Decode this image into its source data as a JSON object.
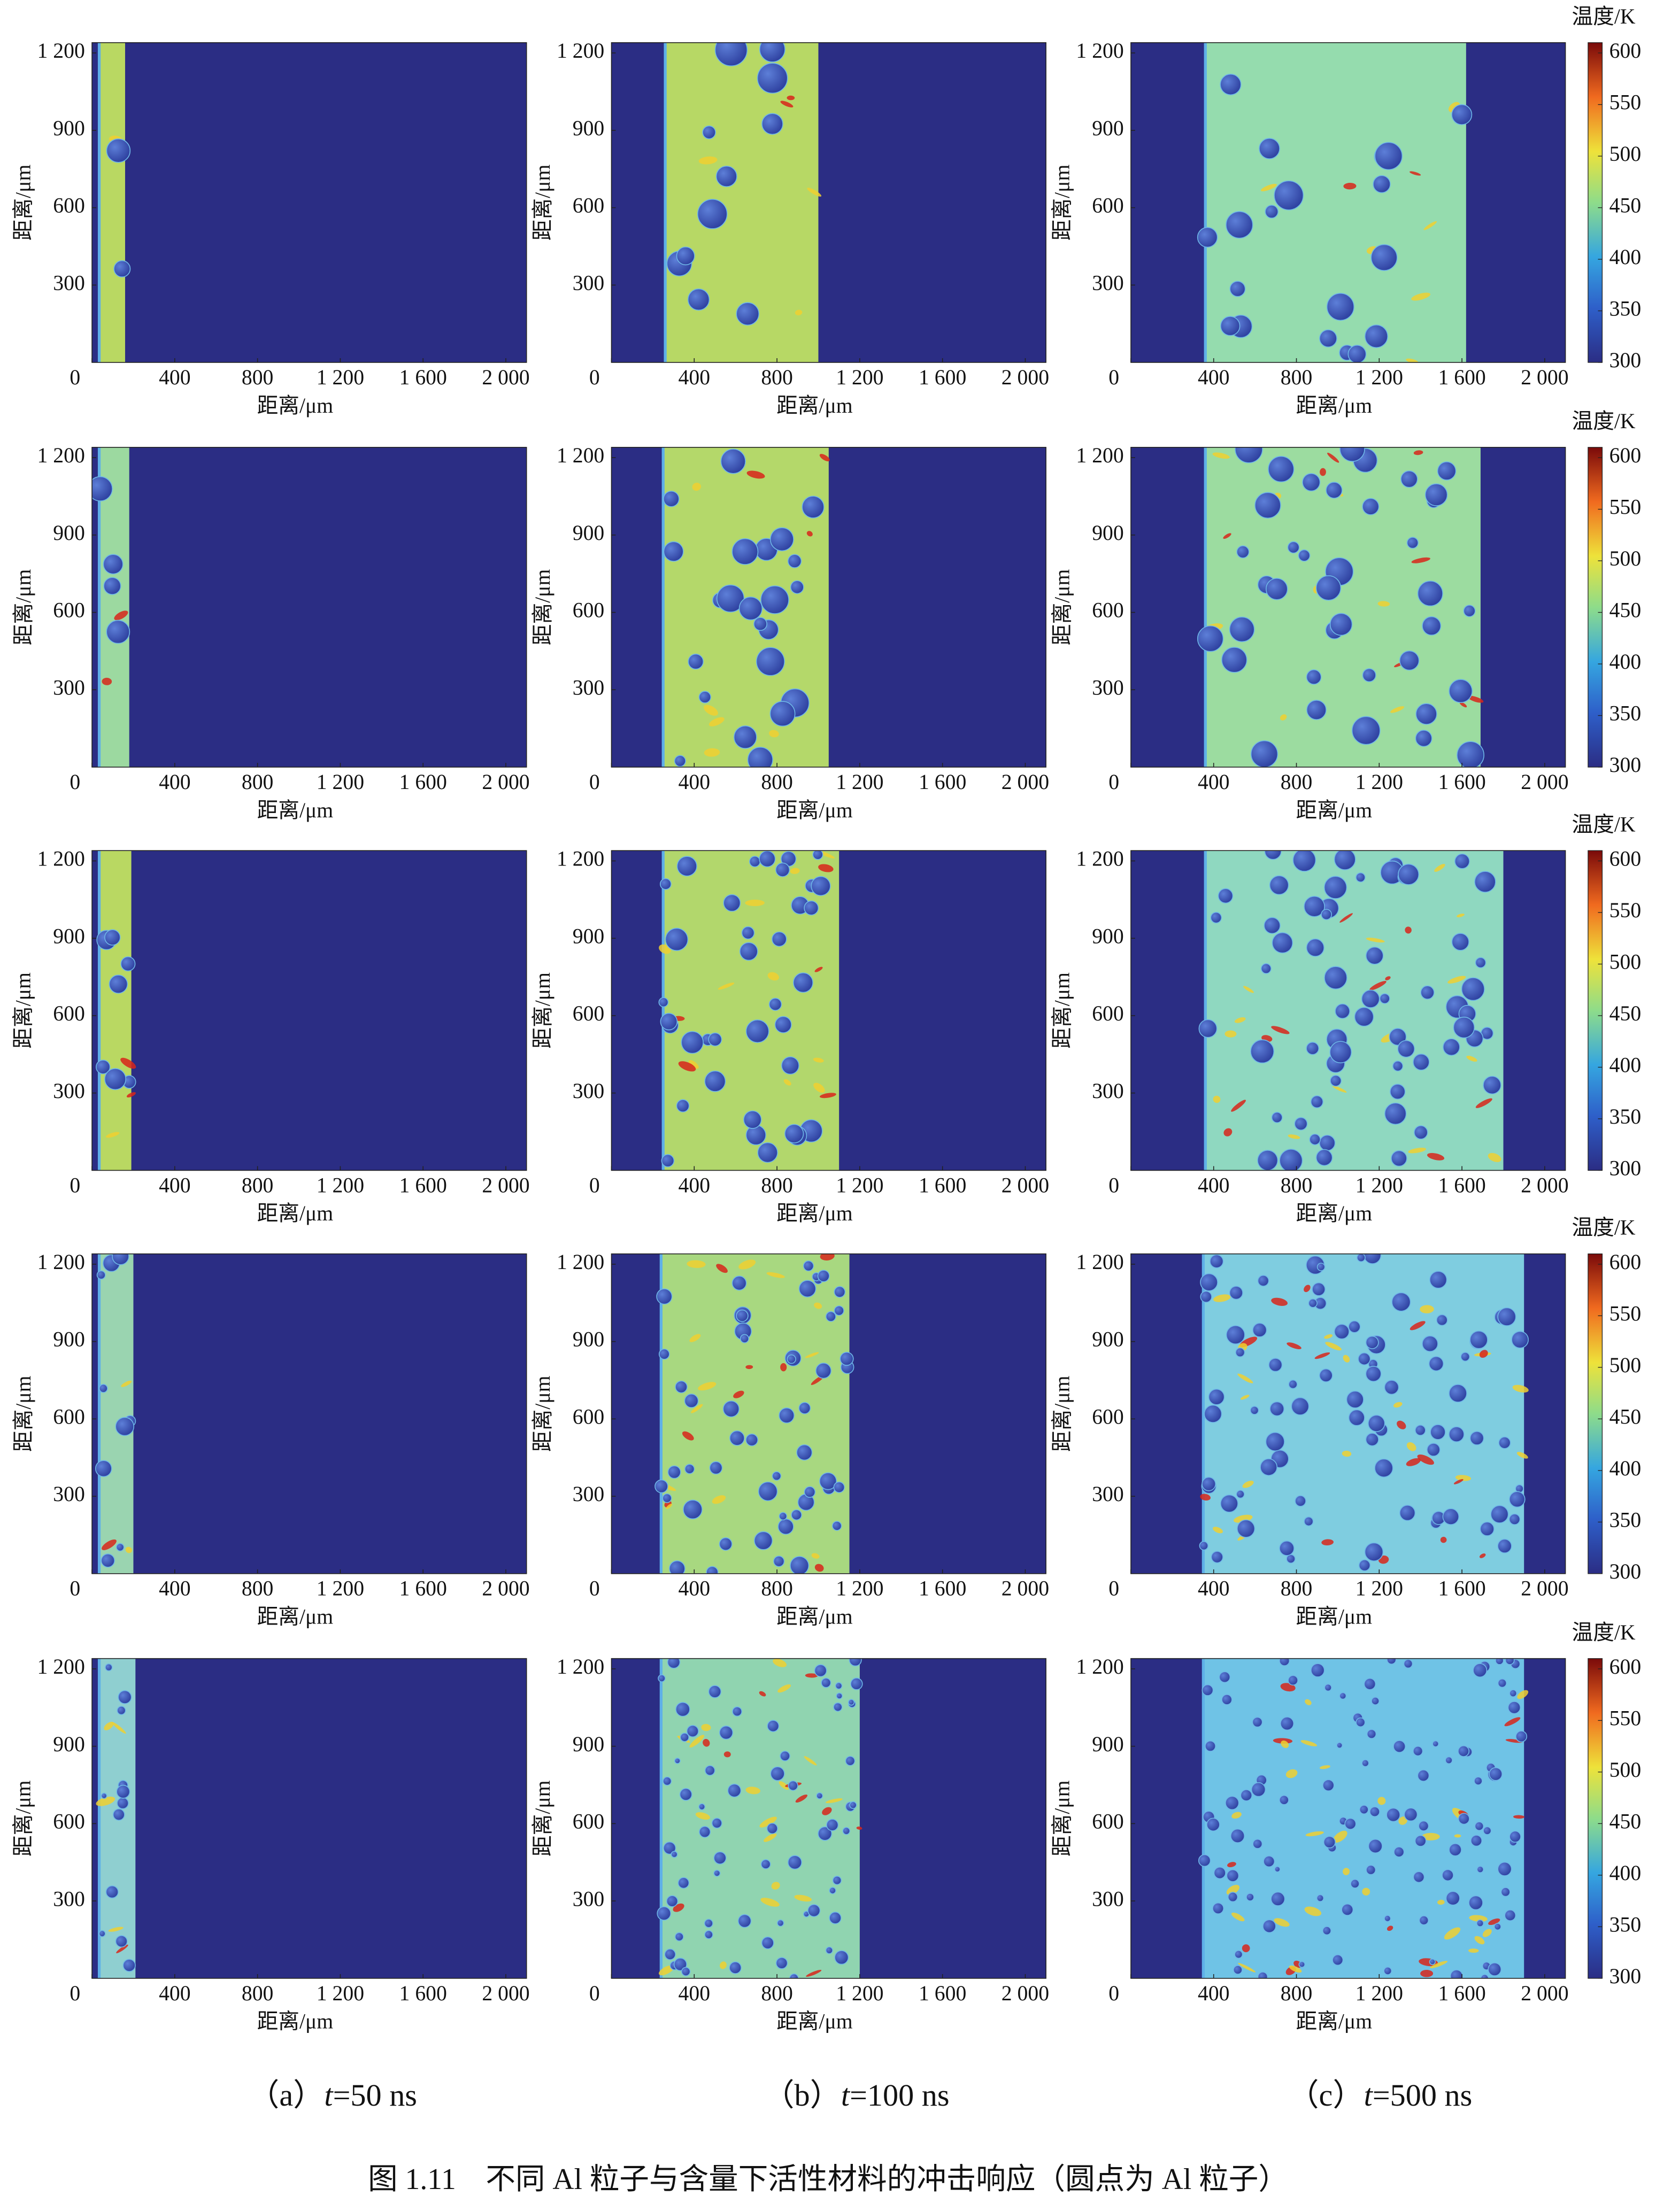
{
  "chart_data": [
    {
      "type": "heatmap",
      "xlabel": "距离/μm",
      "ylabel": "距离/μm",
      "xlim": [
        0,
        2100
      ],
      "xticks": [
        0,
        400,
        800,
        {
          "value": 1200,
          "label": "1 200"
        },
        {
          "value": 1600,
          "label": "1 600"
        },
        {
          "value": 2000,
          "label": "2 000"
        }
      ],
      "ylim": [
        0,
        1240
      ],
      "yticks": [
        300,
        600,
        900,
        {
          "value": 1200,
          "label": "1 200"
        }
      ],
      "shocked": [
        35,
        160
      ],
      "color": "#b9d862"
    },
    {
      "type": "heatmap",
      "xlabel": "距离/μm",
      "ylabel": "距离/μm",
      "xlim": [
        0,
        2100
      ],
      "xticks": [
        0,
        400,
        800,
        {
          "value": 1200,
          "label": "1 200"
        },
        {
          "value": 1600,
          "label": "1 600"
        },
        {
          "value": 2000,
          "label": "2 000"
        }
      ],
      "ylim": [
        0,
        1240
      ],
      "yticks": [
        300,
        600,
        900,
        {
          "value": 1200,
          "label": "1 200"
        }
      ],
      "shocked": [
        260,
        1000
      ],
      "color": "#b7d865"
    },
    {
      "type": "heatmap",
      "xlabel": "距离/μm",
      "ylabel": "距离/μm",
      "xlim": [
        0,
        2100
      ],
      "xticks": [
        0,
        400,
        800,
        {
          "value": 1200,
          "label": "1 200"
        },
        {
          "value": 1600,
          "label": "1 600"
        },
        {
          "value": 2000,
          "label": "2 000"
        }
      ],
      "ylim": [
        0,
        1240
      ],
      "yticks": [
        300,
        600,
        900,
        {
          "value": 1200,
          "label": "1 200"
        }
      ],
      "shocked": [
        360,
        1620
      ],
      "color": "#95dcae",
      "colorbar": {
        "label": "温度/K",
        "lim": [
          300,
          610
        ],
        "ticks": [
          300,
          350,
          400,
          450,
          500,
          550,
          600
        ]
      }
    },
    {
      "type": "heatmap",
      "xlabel": "距离/μm",
      "ylabel": "距离/μm",
      "xlim": [
        0,
        2100
      ],
      "xticks": [
        0,
        400,
        800,
        {
          "value": 1200,
          "label": "1 200"
        },
        {
          "value": 1600,
          "label": "1 600"
        },
        {
          "value": 2000,
          "label": "2 000"
        }
      ],
      "ylim": [
        0,
        1240
      ],
      "yticks": [
        300,
        600,
        900,
        {
          "value": 1200,
          "label": "1 200"
        }
      ],
      "shocked": [
        35,
        180
      ],
      "color": "#9cd9a0"
    },
    {
      "type": "heatmap",
      "xlabel": "距离/μm",
      "ylabel": "距离/μm",
      "xlim": [
        0,
        2100
      ],
      "xticks": [
        0,
        400,
        800,
        {
          "value": 1200,
          "label": "1 200"
        },
        {
          "value": 1600,
          "label": "1 600"
        },
        {
          "value": 2000,
          "label": "2 000"
        }
      ],
      "ylim": [
        0,
        1240
      ],
      "yticks": [
        300,
        600,
        900,
        {
          "value": 1200,
          "label": "1 200"
        }
      ],
      "shocked": [
        250,
        1050
      ],
      "color": "#b4d86a"
    },
    {
      "type": "heatmap",
      "xlabel": "距离/μm",
      "ylabel": "距离/μm",
      "xlim": [
        0,
        2100
      ],
      "xticks": [
        0,
        400,
        800,
        {
          "value": 1200,
          "label": "1 200"
        },
        {
          "value": 1600,
          "label": "1 600"
        },
        {
          "value": 2000,
          "label": "2 000"
        }
      ],
      "ylim": [
        0,
        1240
      ],
      "yticks": [
        300,
        600,
        900,
        {
          "value": 1200,
          "label": "1 200"
        }
      ],
      "shocked": [
        360,
        1690
      ],
      "color": "#9cdca0",
      "colorbar": {
        "label": "温度/K",
        "lim": [
          300,
          610
        ],
        "ticks": [
          300,
          350,
          400,
          450,
          500,
          550,
          600
        ]
      }
    },
    {
      "type": "heatmap",
      "xlabel": "距离/μm",
      "ylabel": "距离/μm",
      "xlim": [
        0,
        2100
      ],
      "xticks": [
        0,
        400,
        800,
        {
          "value": 1200,
          "label": "1 200"
        },
        {
          "value": 1600,
          "label": "1 600"
        },
        {
          "value": 2000,
          "label": "2 000"
        }
      ],
      "ylim": [
        0,
        1240
      ],
      "yticks": [
        300,
        600,
        900,
        {
          "value": 1200,
          "label": "1 200"
        }
      ],
      "shocked": [
        35,
        190
      ],
      "color": "#b9d862"
    },
    {
      "type": "heatmap",
      "xlabel": "距离/μm",
      "ylabel": "距离/μm",
      "xlim": [
        0,
        2100
      ],
      "xticks": [
        0,
        400,
        800,
        {
          "value": 1200,
          "label": "1 200"
        },
        {
          "value": 1600,
          "label": "1 600"
        },
        {
          "value": 2000,
          "label": "2 000"
        }
      ],
      "ylim": [
        0,
        1240
      ],
      "yticks": [
        300,
        600,
        900,
        {
          "value": 1200,
          "label": "1 200"
        }
      ],
      "shocked": [
        250,
        1100
      ],
      "color": "#b2d76c"
    },
    {
      "type": "heatmap",
      "xlabel": "距离/μm",
      "ylabel": "距离/μm",
      "xlim": [
        0,
        2100
      ],
      "xticks": [
        0,
        400,
        800,
        {
          "value": 1200,
          "label": "1 200"
        },
        {
          "value": 1600,
          "label": "1 600"
        },
        {
          "value": 2000,
          "label": "2 000"
        }
      ],
      "ylim": [
        0,
        1240
      ],
      "yticks": [
        300,
        600,
        900,
        {
          "value": 1200,
          "label": "1 200"
        }
      ],
      "shocked": [
        360,
        1800
      ],
      "color": "#8fd8c0",
      "colorbar": {
        "label": "温度/K",
        "lim": [
          300,
          610
        ],
        "ticks": [
          300,
          350,
          400,
          450,
          500,
          550,
          600
        ]
      }
    },
    {
      "type": "heatmap",
      "xlabel": "距离/μm",
      "ylabel": "距离/μm",
      "xlim": [
        0,
        2100
      ],
      "xticks": [
        0,
        400,
        800,
        {
          "value": 1200,
          "label": "1 200"
        },
        {
          "value": 1600,
          "label": "1 600"
        },
        {
          "value": 2000,
          "label": "2 000"
        }
      ],
      "ylim": [
        0,
        1240
      ],
      "yticks": [
        300,
        600,
        900,
        {
          "value": 1200,
          "label": "1 200"
        }
      ],
      "shocked": [
        35,
        200
      ],
      "color": "#9ad4b0"
    },
    {
      "type": "heatmap",
      "xlabel": "距离/μm",
      "ylabel": "距离/μm",
      "xlim": [
        0,
        2100
      ],
      "xticks": [
        0,
        400,
        800,
        {
          "value": 1200,
          "label": "1 200"
        },
        {
          "value": 1600,
          "label": "1 600"
        },
        {
          "value": 2000,
          "label": "2 000"
        }
      ],
      "ylim": [
        0,
        1240
      ],
      "yticks": [
        300,
        600,
        900,
        {
          "value": 1200,
          "label": "1 200"
        }
      ],
      "shocked": [
        240,
        1150
      ],
      "color": "#a8d880"
    },
    {
      "type": "heatmap",
      "xlabel": "距离/μm",
      "ylabel": "距离/μm",
      "xlim": [
        0,
        2100
      ],
      "xticks": [
        0,
        400,
        800,
        {
          "value": 1200,
          "label": "1 200"
        },
        {
          "value": 1600,
          "label": "1 600"
        },
        {
          "value": 2000,
          "label": "2 000"
        }
      ],
      "ylim": [
        0,
        1240
      ],
      "yticks": [
        300,
        600,
        900,
        {
          "value": 1200,
          "label": "1 200"
        }
      ],
      "shocked": [
        350,
        1900
      ],
      "color": "#7fcde0",
      "colorbar": {
        "label": "温度/K",
        "lim": [
          300,
          610
        ],
        "ticks": [
          300,
          350,
          400,
          450,
          500,
          550,
          600
        ]
      }
    },
    {
      "type": "heatmap",
      "xlabel": "距离/μm",
      "ylabel": "距离/μm",
      "xlim": [
        0,
        2100
      ],
      "xticks": [
        0,
        400,
        800,
        {
          "value": 1200,
          "label": "1 200"
        },
        {
          "value": 1600,
          "label": "1 600"
        },
        {
          "value": 2000,
          "label": "2 000"
        }
      ],
      "ylim": [
        0,
        1240
      ],
      "yticks": [
        300,
        600,
        900,
        {
          "value": 1200,
          "label": "1 200"
        }
      ],
      "shocked": [
        35,
        210
      ],
      "color": "#8fcfd0"
    },
    {
      "type": "heatmap",
      "xlabel": "距离/μm",
      "ylabel": "距离/μm",
      "xlim": [
        0,
        2100
      ],
      "xticks": [
        0,
        400,
        800,
        {
          "value": 1200,
          "label": "1 200"
        },
        {
          "value": 1600,
          "label": "1 600"
        },
        {
          "value": 2000,
          "label": "2 000"
        }
      ],
      "ylim": [
        0,
        1240
      ],
      "yticks": [
        300,
        600,
        900,
        {
          "value": 1200,
          "label": "1 200"
        }
      ],
      "shocked": [
        240,
        1200
      ],
      "color": "#90d4b0"
    },
    {
      "type": "heatmap",
      "xlabel": "距离/μm",
      "ylabel": "距离/μm",
      "xlim": [
        0,
        2100
      ],
      "xticks": [
        0,
        400,
        800,
        {
          "value": 1200,
          "label": "1 200"
        },
        {
          "value": 1600,
          "label": "1 600"
        },
        {
          "value": 2000,
          "label": "2 000"
        }
      ],
      "ylim": [
        0,
        1240
      ],
      "yticks": [
        300,
        600,
        900,
        {
          "value": 1200,
          "label": "1 200"
        }
      ],
      "shocked": [
        350,
        1900
      ],
      "color": "#6fc3e6",
      "colorbar": {
        "label": "温度/K",
        "lim": [
          300,
          610
        ],
        "ticks": [
          300,
          350,
          400,
          450,
          500,
          550,
          600
        ]
      }
    }
  ],
  "captions": [
    {
      "label": "（a）",
      "var": "t",
      "rest": "=50 ns"
    },
    {
      "label": "（b）",
      "var": "t",
      "rest": "=100 ns"
    },
    {
      "label": "（c）",
      "var": "t",
      "rest": "=500 ns"
    }
  ],
  "figure_caption": "图 1.11　不同 Al 粒子与含量下活性材料的冲击响应（圆点为 Al 粒子）"
}
